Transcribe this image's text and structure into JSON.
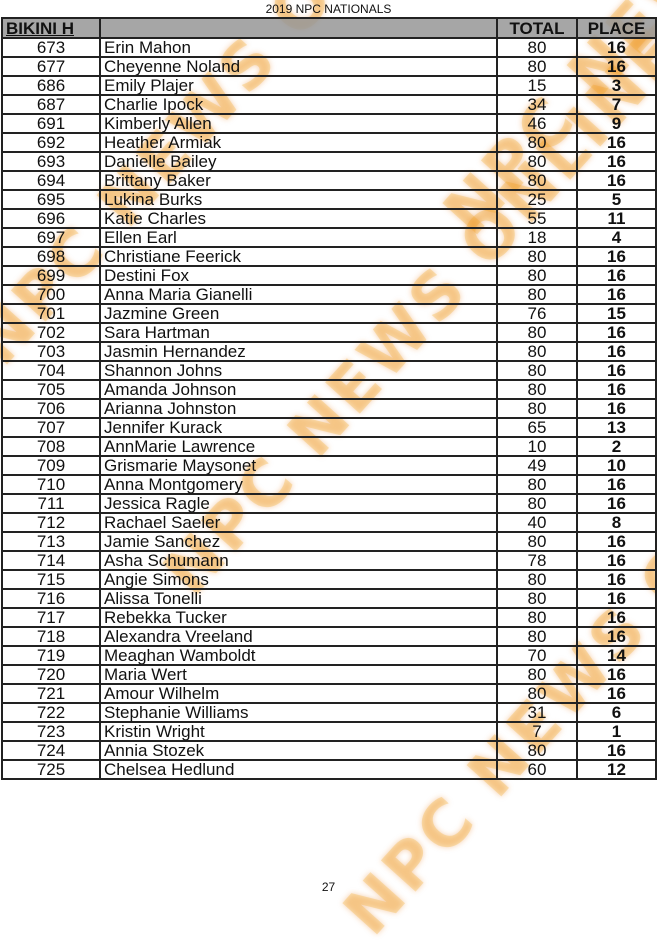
{
  "document": {
    "title": "2019 NPC NATIONALS",
    "page_number": "27",
    "watermark": "NPC NEWS ONLINE"
  },
  "table": {
    "headers": {
      "category": "BIKINI H",
      "name": "",
      "total": "TOTAL",
      "place": "PLACE"
    },
    "rows": [
      {
        "num": "673",
        "name": "Erin Mahon",
        "total": "80",
        "place": "16"
      },
      {
        "num": "677",
        "name": "Cheyenne Noland",
        "total": "80",
        "place": "16"
      },
      {
        "num": "686",
        "name": "Emily Plajer",
        "total": "15",
        "place": "3"
      },
      {
        "num": "687",
        "name": "Charlie Ipock",
        "total": "34",
        "place": "7"
      },
      {
        "num": "691",
        "name": "Kimberly Allen",
        "total": "46",
        "place": "9"
      },
      {
        "num": "692",
        "name": "Heather Armiak",
        "total": "80",
        "place": "16"
      },
      {
        "num": "693",
        "name": "Danielle Bailey",
        "total": "80",
        "place": "16"
      },
      {
        "num": "694",
        "name": "Brittany Baker",
        "total": "80",
        "place": "16"
      },
      {
        "num": "695",
        "name": "Lukina Burks",
        "total": "25",
        "place": "5"
      },
      {
        "num": "696",
        "name": "Katie Charles",
        "total": "55",
        "place": "11"
      },
      {
        "num": "697",
        "name": "Ellen Earl",
        "total": "18",
        "place": "4"
      },
      {
        "num": "698",
        "name": "Christiane Feerick",
        "total": "80",
        "place": "16"
      },
      {
        "num": "699",
        "name": "Destini Fox",
        "total": "80",
        "place": "16"
      },
      {
        "num": "700",
        "name": "Anna Maria  Gianelli",
        "total": "80",
        "place": "16"
      },
      {
        "num": "701",
        "name": "Jazmine  Green",
        "total": "76",
        "place": "15"
      },
      {
        "num": "702",
        "name": "Sara Hartman",
        "total": "80",
        "place": "16"
      },
      {
        "num": "703",
        "name": "Jasmin Hernandez",
        "total": "80",
        "place": "16"
      },
      {
        "num": "704",
        "name": "Shannon Johns",
        "total": "80",
        "place": "16"
      },
      {
        "num": "705",
        "name": "Amanda Johnson",
        "total": "80",
        "place": "16"
      },
      {
        "num": "706",
        "name": "Arianna Johnston",
        "total": "80",
        "place": "16"
      },
      {
        "num": "707",
        "name": "Jennifer Kurack",
        "total": "65",
        "place": "13"
      },
      {
        "num": "708",
        "name": "AnnMarie Lawrence",
        "total": "10",
        "place": "2"
      },
      {
        "num": "709",
        "name": "Grismarie Maysonet",
        "total": "49",
        "place": "10"
      },
      {
        "num": "710",
        "name": "Anna Montgomery",
        "total": "80",
        "place": "16"
      },
      {
        "num": "711",
        "name": "Jessica  Ragle",
        "total": "80",
        "place": "16"
      },
      {
        "num": "712",
        "name": "Rachael Saeler",
        "total": "40",
        "place": "8"
      },
      {
        "num": "713",
        "name": "Jamie  Sanchez",
        "total": "80",
        "place": "16"
      },
      {
        "num": "714",
        "name": "Asha Schumann",
        "total": "78",
        "place": "16"
      },
      {
        "num": "715",
        "name": "Angie Simons",
        "total": "80",
        "place": "16"
      },
      {
        "num": "716",
        "name": "Alissa Tonelli",
        "total": "80",
        "place": "16"
      },
      {
        "num": "717",
        "name": "Rebekka Tucker",
        "total": "80",
        "place": "16"
      },
      {
        "num": "718",
        "name": "Alexandra Vreeland",
        "total": "80",
        "place": "16"
      },
      {
        "num": "719",
        "name": "Meaghan Wamboldt",
        "total": "70",
        "place": "14"
      },
      {
        "num": "720",
        "name": "Maria Wert",
        "total": "80",
        "place": "16"
      },
      {
        "num": "721",
        "name": "Amour Wilhelm",
        "total": "80",
        "place": "16"
      },
      {
        "num": "722",
        "name": "Stephanie Williams",
        "total": "31",
        "place": "6"
      },
      {
        "num": "723",
        "name": "Kristin Wright",
        "total": "7",
        "place": "1"
      },
      {
        "num": "724",
        "name": "Annia Stozek",
        "total": "80",
        "place": "16"
      },
      {
        "num": "725",
        "name": "Chelsea Hedlund",
        "total": "60",
        "place": "12"
      }
    ]
  }
}
